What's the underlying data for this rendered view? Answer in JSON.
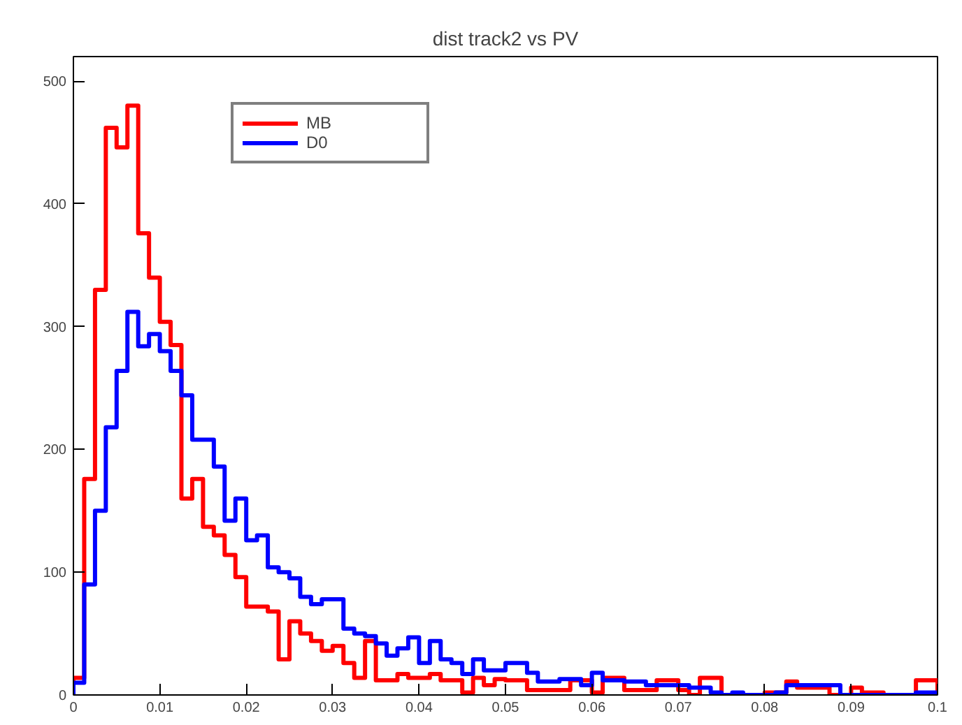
{
  "chart_data": {
    "type": "histogram",
    "title": "dist track2 vs PV",
    "bins": [
      0,
      0.00125,
      0.0025,
      0.00375,
      0.005,
      0.00625,
      0.0075,
      0.00875,
      0.01,
      0.01125,
      0.0125,
      0.01375,
      0.015,
      0.01625,
      0.0175,
      0.01875,
      0.02,
      0.02125,
      0.0225,
      0.02375,
      0.025,
      0.02625,
      0.0275,
      0.02875,
      0.03,
      0.03125,
      0.0325,
      0.03375,
      0.035,
      0.03625,
      0.0375,
      0.03875,
      0.04,
      0.04125,
      0.0425,
      0.04375,
      0.045,
      0.04625,
      0.0475,
      0.04875,
      0.05,
      0.05125,
      0.0525,
      0.05375,
      0.055,
      0.05625,
      0.0575,
      0.05875,
      0.06,
      0.06125,
      0.0625,
      0.06375,
      0.065,
      0.06625,
      0.0675,
      0.06875,
      0.07,
      0.07125,
      0.0725,
      0.07375,
      0.075,
      0.07625,
      0.0775,
      0.07875,
      0.08,
      0.08125,
      0.0825,
      0.08375,
      0.085,
      0.08625,
      0.0875,
      0.08875,
      0.09,
      0.09125,
      0.0925,
      0.09375,
      0.095,
      0.09625,
      0.0975,
      0.09875,
      0.1
    ],
    "series": [
      {
        "name": "MB",
        "color": "#ff0000",
        "values": [
          14,
          176,
          330,
          462,
          446,
          480,
          376,
          340,
          304,
          285,
          160,
          176,
          137,
          130,
          114,
          96,
          72,
          72,
          68,
          29,
          60,
          50,
          44,
          36,
          40,
          26,
          14,
          44,
          12,
          12,
          17,
          14,
          14,
          17,
          12,
          12,
          2,
          14,
          8,
          13,
          12,
          12,
          4,
          4,
          4,
          4,
          12,
          12,
          2,
          14,
          14,
          4,
          4,
          4,
          12,
          12,
          4,
          0,
          14,
          14,
          0,
          0,
          0,
          0,
          2,
          2,
          11,
          6,
          6,
          6,
          0,
          0,
          6,
          2,
          2,
          0,
          0,
          0,
          12,
          12
        ]
      },
      {
        "name": "D0",
        "color": "#0000ff",
        "values": [
          10,
          90,
          150,
          218,
          264,
          312,
          284,
          294,
          280,
          264,
          244,
          208,
          208,
          186,
          142,
          160,
          126,
          130,
          104,
          100,
          95,
          80,
          74,
          78,
          78,
          54,
          50,
          48,
          42,
          32,
          38,
          47,
          26,
          44,
          29,
          26,
          17,
          29,
          20,
          20,
          26,
          26,
          18,
          11,
          11,
          13,
          13,
          8,
          18,
          12,
          12,
          11,
          11,
          8,
          8,
          8,
          8,
          6,
          6,
          2,
          0,
          2,
          0,
          0,
          0,
          2,
          8,
          8,
          8,
          8,
          8,
          0,
          0,
          0,
          0,
          0,
          0,
          0,
          2,
          2
        ]
      }
    ],
    "xlim": [
      0,
      0.1
    ],
    "ylim": [
      0,
      520
    ],
    "xticks": [
      0,
      0.01,
      0.02,
      0.03,
      0.04,
      0.05,
      0.06,
      0.07,
      0.08,
      0.09,
      0.1
    ],
    "yticks": [
      0,
      100,
      200,
      300,
      400,
      500
    ],
    "legend": "top left",
    "grid": false
  }
}
